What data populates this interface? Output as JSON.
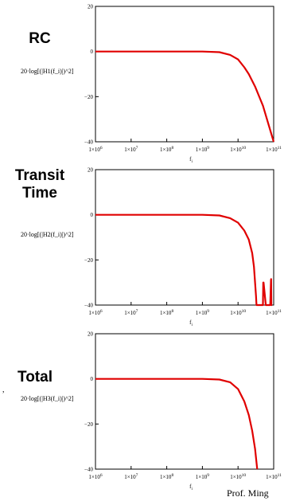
{
  "panels": [
    {
      "title": "RC",
      "ylabel": "20·log[(|H1(f_i)|)^2]",
      "xlabel": "f_i"
    },
    {
      "title": "Transit Time",
      "ylabel": "20·log[(|H2(f_i)|)^2]",
      "xlabel": "f_i"
    },
    {
      "title": "Total",
      "ylabel": "20·log[(|H3(f_i)|)^2]",
      "xlabel": "f_i"
    }
  ],
  "footer": {
    "credit": "Prof. Ming"
  },
  "stray_mark": ",",
  "chart_data": [
    {
      "type": "line",
      "title": "RC",
      "xlabel": "f_i",
      "ylabel": "20·log[(|H1(f_i)|)^2]",
      "x_scale": "log",
      "xlim": [
        1000000,
        100000000000
      ],
      "ylim": [
        -40,
        20
      ],
      "x_ticks": [
        "1×10^6",
        "1×10^7",
        "1×10^8",
        "1×10^9",
        "1×10^10",
        "1×10^11"
      ],
      "y_ticks": [
        "20",
        "0",
        "−20",
        "−40"
      ],
      "color": "#e00000",
      "series": [
        {
          "x": [
            1000000,
            1000000000,
            3000000000,
            6000000000,
            10000000000,
            15000000000,
            20000000000,
            30000000000,
            50000000000,
            100000000000
          ],
          "y": [
            0,
            0,
            -0.3,
            -1.5,
            -3.5,
            -7,
            -10,
            -15.5,
            -24,
            -40
          ]
        }
      ]
    },
    {
      "type": "line",
      "title": "Transit Time",
      "xlabel": "f_i",
      "ylabel": "20·log[(|H2(f_i)|)^2]",
      "x_scale": "log",
      "xlim": [
        1000000,
        100000000000
      ],
      "ylim": [
        -40,
        20
      ],
      "x_ticks": [
        "1×10^6",
        "1×10^7",
        "1×10^8",
        "1×10^9",
        "1×10^10",
        "1×10^11"
      ],
      "y_ticks": [
        "20",
        "0",
        "−20",
        "−40"
      ],
      "color": "#e00000",
      "series": [
        {
          "x": [
            1000000,
            1000000000,
            3000000000,
            6000000000,
            10000000000,
            15000000000,
            20000000000,
            25000000000,
            28000000000,
            30000000000,
            32000000000,
            33000000000,
            34000000000,
            34500000000,
            50000000000,
            51000000000,
            52000000000,
            60000000000,
            80000000000,
            84000000000,
            85000000000,
            86000000000,
            90000000000
          ],
          "y": [
            0,
            0,
            -0.3,
            -1.5,
            -3.5,
            -7,
            -11,
            -17,
            -23,
            -30,
            -36,
            -40,
            -40,
            -40,
            -40,
            -30,
            -30,
            -40,
            -40,
            -29,
            -28.5,
            -40,
            -40
          ]
        }
      ]
    },
    {
      "type": "line",
      "title": "Total",
      "xlabel": "f_i",
      "ylabel": "20·log[(|H3(f_i)|)^2]",
      "x_scale": "log",
      "xlim": [
        1000000,
        100000000000
      ],
      "ylim": [
        -40,
        20
      ],
      "x_ticks": [
        "1×10^6",
        "1×10^7",
        "1×10^8",
        "1×10^9",
        "1×10^10",
        "1×10^11"
      ],
      "y_ticks": [
        "20",
        "0",
        "−20",
        "−40"
      ],
      "color": "#e00000",
      "series": [
        {
          "x": [
            1000000,
            1000000000,
            3000000000,
            6000000000,
            10000000000,
            15000000000,
            20000000000,
            25000000000,
            30000000000,
            34500000000
          ],
          "y": [
            0,
            0,
            -0.3,
            -1.5,
            -4.5,
            -10,
            -16,
            -23,
            -31,
            -40
          ]
        }
      ]
    }
  ]
}
